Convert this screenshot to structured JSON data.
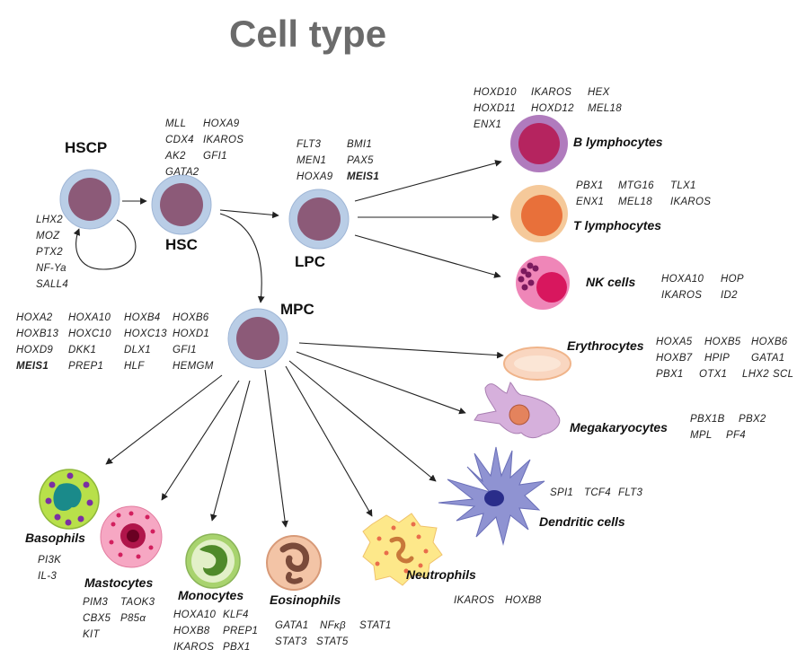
{
  "title": "Cell type",
  "cells": {
    "hscp": "HSCP",
    "hsc": "HSC",
    "lpc": "LPC",
    "mpc": "MPC",
    "b": "B lymphocytes",
    "t": "T lymphocytes",
    "nk": "NK cells",
    "ery": "Erythrocytes",
    "mega": "Megakaryocytes",
    "dend": "Dendritic cells",
    "baso": "Basophils",
    "masto": "Mastocytes",
    "mono": "Monocytes",
    "eos": "Eosinophils",
    "neut": "Neutrophils"
  },
  "genes": {
    "hscp": [
      "LHX2",
      "MOZ",
      "PTX2",
      "NF-Ya",
      "SALL4"
    ],
    "hsc": [
      "MLL",
      "HOXA9",
      "CDX4",
      "IKAROS",
      "AK2",
      "GFI1",
      "GATA2"
    ],
    "lpc": [
      "FLT3",
      "BMI1",
      "MEN1",
      "PAX5",
      "HOXA9",
      "MEIS1"
    ],
    "b": [
      "HOXD10",
      "IKAROS",
      "HEX",
      "HOXD11",
      "HOXD12",
      "MEL18",
      "ENX1"
    ],
    "t": [
      "PBX1",
      "MTG16",
      "TLX1",
      "ENX1",
      "MEL18",
      "IKAROS"
    ],
    "nk": [
      "HOXA10",
      "HOP",
      "IKAROS",
      "ID2"
    ],
    "mpc": [
      "HOXA2",
      "HOXA10",
      "HOXB4",
      "HOXB6",
      "HOXB13",
      "HOXC10",
      "HOXC13",
      "HOXD1",
      "HOXD9",
      "DKK1",
      "DLX1",
      "GFI1",
      "MEIS1",
      "PREP1",
      "HLF",
      "HEMGM"
    ],
    "ery": [
      "HOXA5",
      "HOXB5",
      "HOXB6",
      "HOXB7",
      "HPIP",
      "GATA1",
      "PBX1",
      "OTX1",
      "LHX2",
      "SCL"
    ],
    "mega": [
      "PBX1B",
      "PBX2",
      "MPL",
      "PF4"
    ],
    "dend": [
      "SPI1",
      "TCF4",
      "FLT3"
    ],
    "neut": [
      "IKAROS",
      "HOXB8"
    ],
    "baso": [
      "PI3K",
      "IL-3"
    ],
    "masto": [
      "PIM3",
      "TAOK3",
      "CBX5",
      "P85α",
      "KIT"
    ],
    "mono": [
      "HOXA10",
      "KLF4",
      "HOXB8",
      "PREP1",
      "IKAROS",
      "PBX1"
    ],
    "eos": [
      "GATA1",
      "NFκβ",
      "STAT1",
      "STAT3",
      "STAT5"
    ]
  },
  "colors": {
    "progenitor_outer": "#b9cde6",
    "progenitor_inner": "#8c5a78",
    "b_outer": "#b07bbd",
    "b_inner": "#b5245f",
    "t_outer": "#f5c99a",
    "t_inner": "#e8703a",
    "nk_body": "#ef86b8",
    "nk_nucleus": "#d8175e",
    "ery": "#f9d6c0",
    "mega": "#d6b0dc",
    "dend": "#8f93d2",
    "baso": "#b8e04a",
    "masto": "#f6a7c3",
    "mono": "#a8d36e",
    "eos": "#f3c4a6",
    "neut": "#fde88a"
  }
}
